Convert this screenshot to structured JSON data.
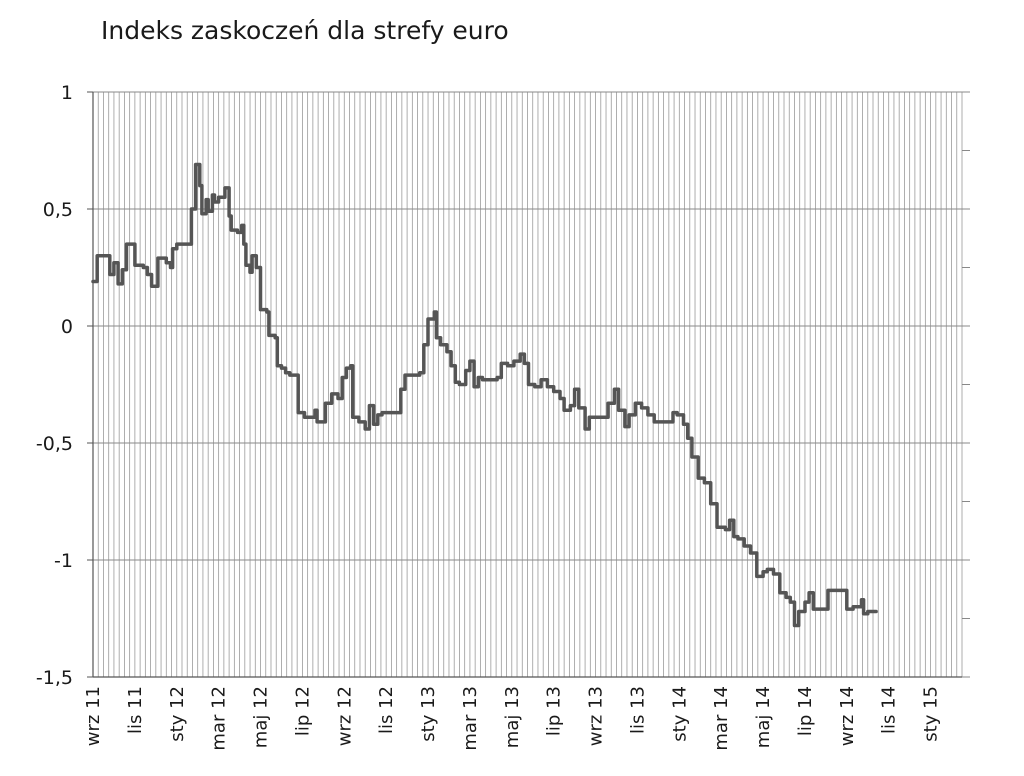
{
  "chart_data": {
    "type": "line",
    "title": "Indeks zaskoczeń dla strefy euro",
    "xlabel": "",
    "ylabel": "",
    "ylim": [
      -1.5,
      1
    ],
    "yticks": [
      "1",
      "0,5",
      "0",
      "-0,5",
      "-1",
      "-1,5"
    ],
    "ytick_values": [
      1,
      0.5,
      0,
      -0.5,
      -1,
      -1.5
    ],
    "xticks": [
      "wrz 11",
      "lis 11",
      "sty 12",
      "mar 12",
      "maj 12",
      "lip 12",
      "wrz 12",
      "lis 12",
      "sty 13",
      "mar 13",
      "maj 13",
      "lip 13",
      "wrz 13",
      "lis 13",
      "sty 14",
      "mar 14",
      "maj 14",
      "lip 14",
      "wrz 14",
      "lis 14",
      "sty 15"
    ],
    "xlim": [
      0,
      41.5
    ],
    "grid": true,
    "line_color": "#555555",
    "series": [
      {
        "values": [
          [
            0,
            0.19
          ],
          [
            0.2,
            0.3
          ],
          [
            0.6,
            0.3
          ],
          [
            0.8,
            0.22
          ],
          [
            1.0,
            0.27
          ],
          [
            1.2,
            0.18
          ],
          [
            1.4,
            0.24
          ],
          [
            1.6,
            0.35
          ],
          [
            1.9,
            0.35
          ],
          [
            2.0,
            0.26
          ],
          [
            2.4,
            0.25
          ],
          [
            2.6,
            0.22
          ],
          [
            2.8,
            0.17
          ],
          [
            3.0,
            0.17
          ],
          [
            3.1,
            0.29
          ],
          [
            3.5,
            0.27
          ],
          [
            3.7,
            0.25
          ],
          [
            3.8,
            0.33
          ],
          [
            4.0,
            0.35
          ],
          [
            4.6,
            0.35
          ],
          [
            4.7,
            0.5
          ],
          [
            4.9,
            0.69
          ],
          [
            5.1,
            0.6
          ],
          [
            5.2,
            0.48
          ],
          [
            5.4,
            0.54
          ],
          [
            5.5,
            0.49
          ],
          [
            5.7,
            0.56
          ],
          [
            5.8,
            0.53
          ],
          [
            6.0,
            0.55
          ],
          [
            6.3,
            0.59
          ],
          [
            6.5,
            0.47
          ],
          [
            6.6,
            0.41
          ],
          [
            6.9,
            0.4
          ],
          [
            7.1,
            0.43
          ],
          [
            7.2,
            0.35
          ],
          [
            7.3,
            0.26
          ],
          [
            7.5,
            0.23
          ],
          [
            7.6,
            0.3
          ],
          [
            7.8,
            0.25
          ],
          [
            8.0,
            0.07
          ],
          [
            8.3,
            0.06
          ],
          [
            8.4,
            -0.04
          ],
          [
            8.7,
            -0.05
          ],
          [
            8.8,
            -0.17
          ],
          [
            9.0,
            -0.18
          ],
          [
            9.2,
            -0.2
          ],
          [
            9.4,
            -0.21
          ],
          [
            9.7,
            -0.21
          ],
          [
            9.8,
            -0.37
          ],
          [
            10.1,
            -0.39
          ],
          [
            10.4,
            -0.39
          ],
          [
            10.6,
            -0.36
          ],
          [
            10.7,
            -0.41
          ],
          [
            11.1,
            -0.33
          ],
          [
            11.4,
            -0.29
          ],
          [
            11.7,
            -0.31
          ],
          [
            11.9,
            -0.22
          ],
          [
            12.1,
            -0.18
          ],
          [
            12.3,
            -0.17
          ],
          [
            12.4,
            -0.39
          ],
          [
            12.7,
            -0.41
          ],
          [
            13.0,
            -0.44
          ],
          [
            13.2,
            -0.34
          ],
          [
            13.4,
            -0.42
          ],
          [
            13.6,
            -0.38
          ],
          [
            13.8,
            -0.37
          ],
          [
            14.6,
            -0.37
          ],
          [
            14.7,
            -0.27
          ],
          [
            14.9,
            -0.21
          ],
          [
            15.6,
            -0.2
          ],
          [
            15.8,
            -0.08
          ],
          [
            16.0,
            0.03
          ],
          [
            16.3,
            0.06
          ],
          [
            16.4,
            -0.05
          ],
          [
            16.6,
            -0.08
          ],
          [
            16.9,
            -0.11
          ],
          [
            17.1,
            -0.17
          ],
          [
            17.3,
            -0.24
          ],
          [
            17.5,
            -0.25
          ],
          [
            17.8,
            -0.19
          ],
          [
            18.0,
            -0.15
          ],
          [
            18.2,
            -0.26
          ],
          [
            18.4,
            -0.22
          ],
          [
            18.6,
            -0.23
          ],
          [
            19.3,
            -0.22
          ],
          [
            19.5,
            -0.16
          ],
          [
            19.8,
            -0.17
          ],
          [
            20.1,
            -0.15
          ],
          [
            20.4,
            -0.12
          ],
          [
            20.6,
            -0.16
          ],
          [
            20.8,
            -0.25
          ],
          [
            21.1,
            -0.26
          ],
          [
            21.4,
            -0.23
          ],
          [
            21.7,
            -0.26
          ],
          [
            22.0,
            -0.28
          ],
          [
            22.3,
            -0.31
          ],
          [
            22.5,
            -0.36
          ],
          [
            22.8,
            -0.34
          ],
          [
            23.0,
            -0.27
          ],
          [
            23.2,
            -0.35
          ],
          [
            23.5,
            -0.44
          ],
          [
            23.7,
            -0.39
          ],
          [
            24.4,
            -0.39
          ],
          [
            24.6,
            -0.33
          ],
          [
            24.9,
            -0.27
          ],
          [
            25.1,
            -0.36
          ],
          [
            25.4,
            -0.43
          ],
          [
            25.6,
            -0.38
          ],
          [
            25.9,
            -0.33
          ],
          [
            26.2,
            -0.35
          ],
          [
            26.5,
            -0.38
          ],
          [
            26.8,
            -0.41
          ],
          [
            27.5,
            -0.41
          ],
          [
            27.7,
            -0.37
          ],
          [
            27.9,
            -0.38
          ],
          [
            28.2,
            -0.42
          ],
          [
            28.4,
            -0.48
          ],
          [
            28.6,
            -0.56
          ],
          [
            28.9,
            -0.65
          ],
          [
            29.2,
            -0.67
          ],
          [
            29.5,
            -0.76
          ],
          [
            29.8,
            -0.86
          ],
          [
            30.2,
            -0.87
          ],
          [
            30.4,
            -0.83
          ],
          [
            30.6,
            -0.9
          ],
          [
            30.8,
            -0.91
          ],
          [
            31.1,
            -0.94
          ],
          [
            31.4,
            -0.97
          ],
          [
            31.7,
            -1.07
          ],
          [
            32.0,
            -1.05
          ],
          [
            32.2,
            -1.04
          ],
          [
            32.5,
            -1.06
          ],
          [
            32.8,
            -1.14
          ],
          [
            33.1,
            -1.16
          ],
          [
            33.3,
            -1.18
          ],
          [
            33.5,
            -1.28
          ],
          [
            33.7,
            -1.22
          ],
          [
            34.0,
            -1.18
          ],
          [
            34.2,
            -1.14
          ],
          [
            34.4,
            -1.21
          ],
          [
            35.0,
            -1.21
          ],
          [
            35.1,
            -1.13
          ],
          [
            35.7,
            -1.13
          ],
          [
            36.0,
            -1.21
          ],
          [
            36.3,
            -1.2
          ],
          [
            36.7,
            -1.17
          ],
          [
            36.8,
            -1.23
          ],
          [
            37.0,
            -1.22
          ],
          [
            37.4,
            -1.22
          ]
        ]
      }
    ]
  }
}
